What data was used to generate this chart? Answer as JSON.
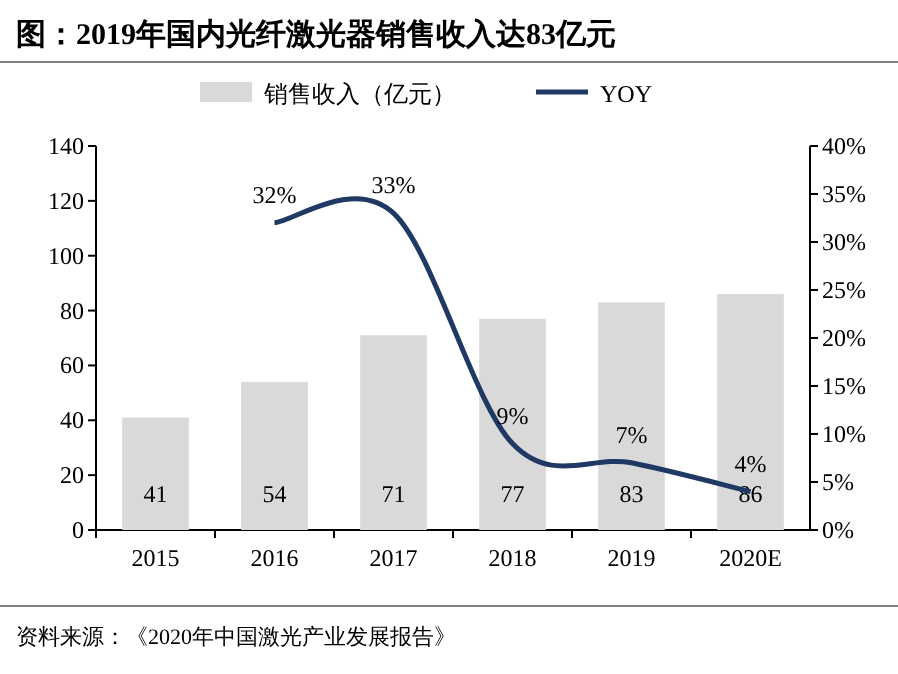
{
  "chart_data": {
    "type": "bar",
    "title": "图：2019年国内光纤激光器销售收入达83亿元",
    "categories": [
      "2015",
      "2016",
      "2017",
      "2018",
      "2019",
      "2020E"
    ],
    "series": [
      {
        "name": "销售收入（亿元）",
        "color": "#d9d9d9",
        "values": [
          41,
          54,
          71,
          77,
          83,
          86
        ],
        "value_labels": [
          "41",
          "54",
          "71",
          "77",
          "83",
          "86"
        ]
      },
      {
        "name": "YOY",
        "type": "line",
        "axis": "y2",
        "color": "#1f3864",
        "values": [
          null,
          32,
          33,
          9,
          7,
          4
        ],
        "value_labels": [
          null,
          "32%",
          "33%",
          "9%",
          "7%",
          "4%"
        ]
      }
    ],
    "ylim": [
      0,
      140
    ],
    "yticks": [
      0,
      20,
      40,
      60,
      80,
      100,
      120,
      140
    ],
    "y2lim": [
      0,
      40
    ],
    "y2ticks": [
      {
        "value": 0,
        "label": "0%"
      },
      {
        "value": 5,
        "label": "5%"
      },
      {
        "value": 10,
        "label": "10%"
      },
      {
        "value": 15,
        "label": "15%"
      },
      {
        "value": 20,
        "label": "20%"
      },
      {
        "value": 25,
        "label": "25%"
      },
      {
        "value": 30,
        "label": "30%"
      },
      {
        "value": 35,
        "label": "35%"
      },
      {
        "value": 40,
        "label": "40%"
      }
    ],
    "legend": "top",
    "grid": false,
    "marker": "none",
    "line_style": "solid",
    "annotations": [
      "资料来源：《2020年中国激光产业发展报告》"
    ]
  }
}
